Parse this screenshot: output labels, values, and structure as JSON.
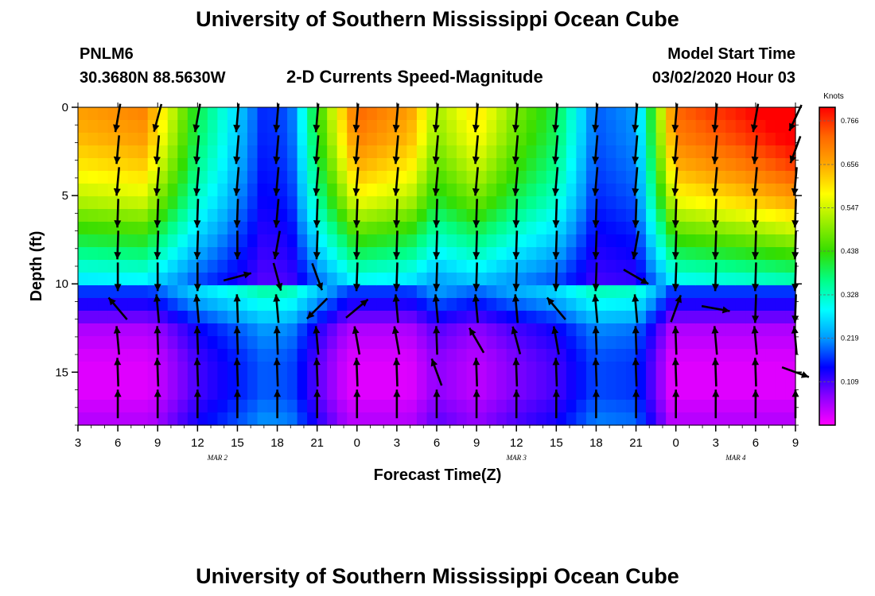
{
  "header": {
    "title": "University of Southern Mississippi Ocean Cube",
    "station_id": "PNLM6",
    "station_coords": "30.3680N 88.5630W",
    "product": "2-D Currents Speed-Magnitude",
    "model_start_label": "Model Start Time",
    "model_start_value": "03/02/2020 Hour 03"
  },
  "footer": {
    "title": "University of Southern Mississippi Ocean Cube"
  },
  "colors": {
    "arrow": "#000000",
    "scale": [
      "#ff00ff",
      "#8a00ff",
      "#0000ff",
      "#0099ff",
      "#00ffff",
      "#00ff88",
      "#33dd00",
      "#99ee00",
      "#ffff00",
      "#ffaa00",
      "#ff6600",
      "#ff0000"
    ]
  },
  "chart_data": {
    "type": "heatmap",
    "title": "2-D Currents Speed-Magnitude",
    "xlabel": "Forecast Time(Z)",
    "ylabel": "Depth (ft)",
    "x_range": [
      3,
      57
    ],
    "y_range": [
      0,
      18
    ],
    "x_ticks": [
      {
        "hour": 3,
        "label": "3"
      },
      {
        "hour": 6,
        "label": "6"
      },
      {
        "hour": 9,
        "label": "9"
      },
      {
        "hour": 12,
        "label": "12"
      },
      {
        "hour": 15,
        "label": "15"
      },
      {
        "hour": 18,
        "label": "18"
      },
      {
        "hour": 21,
        "label": "21"
      },
      {
        "hour": 24,
        "label": "0"
      },
      {
        "hour": 27,
        "label": "3"
      },
      {
        "hour": 30,
        "label": "6"
      },
      {
        "hour": 33,
        "label": "9"
      },
      {
        "hour": 36,
        "label": "12"
      },
      {
        "hour": 39,
        "label": "15"
      },
      {
        "hour": 42,
        "label": "18"
      },
      {
        "hour": 45,
        "label": "21"
      },
      {
        "hour": 48,
        "label": "0"
      },
      {
        "hour": 51,
        "label": "3"
      },
      {
        "hour": 54,
        "label": "6"
      },
      {
        "hour": 57,
        "label": "9"
      }
    ],
    "date_labels": [
      {
        "hour": 13.5,
        "label": "MAR 2"
      },
      {
        "hour": 36,
        "label": "MAR 3"
      },
      {
        "hour": 52.5,
        "label": "MAR 4"
      }
    ],
    "y_ticks": [
      {
        "depth": 0,
        "label": "0"
      },
      {
        "depth": 5,
        "label": "5"
      },
      {
        "depth": 10,
        "label": "10"
      },
      {
        "depth": 15,
        "label": "15"
      }
    ],
    "colorbar": {
      "unit_label": "Knots",
      "min": 0,
      "max": 0.8,
      "tick_values": [
        0.109,
        0.219,
        0.328,
        0.438,
        0.547,
        0.656,
        0.766
      ],
      "tick_labels": [
        "0.109",
        "0.219",
        "0.328",
        "0.438",
        "0.547",
        "0.656",
        "0.766"
      ]
    },
    "depth_band_speeds": [
      0.6,
      0.57,
      0.52,
      0.45,
      0.35,
      0.25,
      0.15,
      0.05,
      0.02,
      0.02,
      0.05
    ],
    "time_factors": [
      {
        "hour": 3,
        "f": 1.0
      },
      {
        "hour": 8,
        "f": 1.05
      },
      {
        "hour": 12,
        "f": 0.55
      },
      {
        "hour": 14,
        "f": 0.4
      },
      {
        "hour": 17,
        "f": 0.15
      },
      {
        "hour": 19,
        "f": 0.2
      },
      {
        "hour": 21,
        "f": 0.6
      },
      {
        "hour": 24,
        "f": 1.1
      },
      {
        "hour": 28,
        "f": 1.0
      },
      {
        "hour": 30,
        "f": 0.75
      },
      {
        "hour": 33,
        "f": 0.9
      },
      {
        "hour": 36,
        "f": 0.7
      },
      {
        "hour": 39,
        "f": 0.55
      },
      {
        "hour": 42,
        "f": 0.2
      },
      {
        "hour": 45,
        "f": 0.25
      },
      {
        "hour": 48,
        "f": 1.1
      },
      {
        "hour": 53,
        "f": 1.2
      },
      {
        "hour": 57,
        "f": 1.3
      }
    ],
    "vector_depths": [
      0.6,
      2.4,
      4.2,
      6.0,
      7.8,
      9.6,
      11.4,
      13.2,
      15.0,
      16.8
    ],
    "vector_hours": [
      6,
      9,
      12,
      15,
      18,
      21,
      24,
      27,
      30,
      33,
      36,
      39,
      42,
      45,
      48,
      51,
      54,
      57
    ],
    "vector_angles_deg": [
      [
        -100,
        -105,
        -100,
        -95,
        -95,
        -95,
        -95,
        -95,
        -95,
        -95,
        -95,
        -95,
        -95,
        -95,
        -95,
        -95,
        -100,
        -115
      ],
      [
        -95,
        -95,
        -95,
        -95,
        -95,
        -95,
        -95,
        -95,
        -95,
        -95,
        -95,
        -95,
        -95,
        -95,
        -95,
        -95,
        -95,
        -110
      ],
      [
        -95,
        -95,
        -95,
        -95,
        -95,
        -95,
        -95,
        -95,
        -95,
        -95,
        -95,
        -95,
        -95,
        -95,
        -95,
        -95,
        -95,
        -95
      ],
      [
        -92,
        -92,
        -92,
        -92,
        -95,
        -92,
        -92,
        -92,
        -92,
        -92,
        -92,
        -92,
        -92,
        -92,
        -92,
        -92,
        -92,
        -92
      ],
      [
        -92,
        -92,
        -92,
        -90,
        -100,
        -92,
        -92,
        -92,
        -92,
        -92,
        -92,
        -92,
        -92,
        -100,
        -92,
        -92,
        -92,
        -92
      ],
      [
        -90,
        -90,
        -90,
        15,
        -75,
        -70,
        -92,
        -92,
        -92,
        -92,
        -92,
        -92,
        -92,
        -30,
        -92,
        -92,
        -92,
        -92
      ],
      [
        130,
        95,
        95,
        92,
        95,
        -135,
        40,
        95,
        95,
        95,
        95,
        130,
        95,
        95,
        70,
        -10,
        -92,
        -92
      ],
      [
        95,
        92,
        92,
        92,
        92,
        95,
        100,
        100,
        92,
        120,
        105,
        100,
        92,
        92,
        92,
        95,
        95,
        95
      ],
      [
        92,
        92,
        92,
        92,
        92,
        92,
        92,
        92,
        110,
        92,
        92,
        92,
        92,
        92,
        92,
        92,
        92,
        -20
      ],
      [
        90,
        90,
        90,
        90,
        90,
        90,
        90,
        90,
        90,
        90,
        90,
        90,
        90,
        90,
        90,
        90,
        90,
        90
      ]
    ]
  }
}
